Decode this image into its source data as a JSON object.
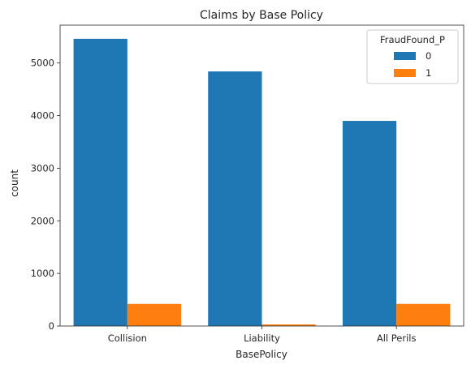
{
  "chart_data": {
    "type": "bar",
    "title": "Claims by Base Policy",
    "xlabel": "BasePolicy",
    "ylabel": "count",
    "categories": [
      "Collision",
      "Liability",
      "All Perils"
    ],
    "series": [
      {
        "name": "0",
        "values": [
          5460,
          4840,
          3900
        ],
        "color": "#1f77b4"
      },
      {
        "name": "1",
        "values": [
          420,
          30,
          420
        ],
        "color": "#ff7f0e"
      }
    ],
    "ylim": [
      0,
      5720
    ],
    "yticks": [
      0,
      1000,
      2000,
      3000,
      4000,
      5000
    ],
    "legend": {
      "title": "FraudFound_P",
      "placement": "top-right"
    },
    "grid": false
  }
}
